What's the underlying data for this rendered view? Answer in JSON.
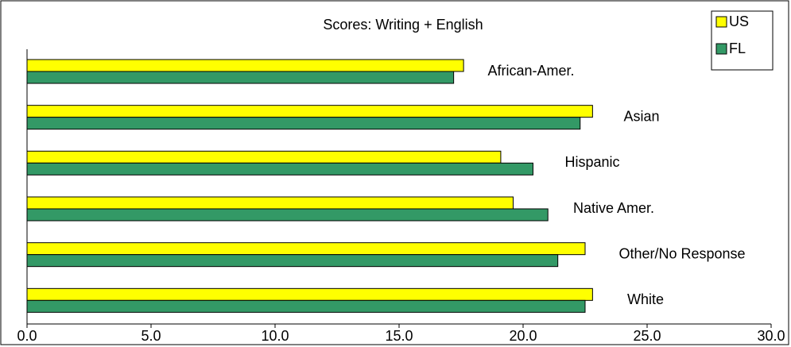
{
  "chart_data": {
    "type": "hbar",
    "title": "Scores:  Writing + English",
    "categories": [
      "African-Amer.",
      "Asian",
      "Hispanic",
      "Native Amer.",
      "Other/No Response",
      "White"
    ],
    "series": [
      {
        "name": "US",
        "color": "#ffff00",
        "values": [
          17.6,
          22.8,
          19.1,
          19.6,
          22.5,
          22.8
        ]
      },
      {
        "name": "FL",
        "color": "#339966",
        "values": [
          17.2,
          22.3,
          20.4,
          21.0,
          21.4,
          22.5
        ]
      }
    ],
    "xlim": [
      0,
      30
    ],
    "xticks": [
      {
        "value": 0,
        "label": "0.0"
      },
      {
        "value": 5,
        "label": "5.0"
      },
      {
        "value": 10,
        "label": "10.0"
      },
      {
        "value": 15,
        "label": "15.0"
      },
      {
        "value": 20,
        "label": "20.0"
      },
      {
        "value": 25,
        "label": "25.0"
      },
      {
        "value": 30,
        "label": "30.0"
      }
    ],
    "legend": "top-right"
  }
}
